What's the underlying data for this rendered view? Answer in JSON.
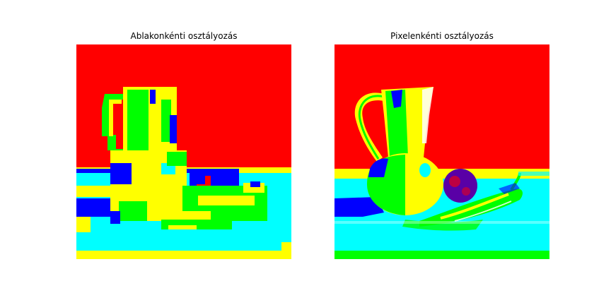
{
  "panels": [
    {
      "title": "Ablakonkénti osztályozás",
      "style": "blocky",
      "palette": {
        "red": "#ff0000",
        "yellow": "#ffff00",
        "green": "#00ff00",
        "cyan": "#00ffff",
        "blue": "#0000ff"
      }
    },
    {
      "title": "Pixelenkénti osztályozás",
      "style": "fine",
      "palette": {
        "red": "#ff0000",
        "yellow": "#ffff00",
        "green": "#00ff00",
        "cyan": "#00ffff",
        "blue": "#0000ff"
      }
    }
  ]
}
